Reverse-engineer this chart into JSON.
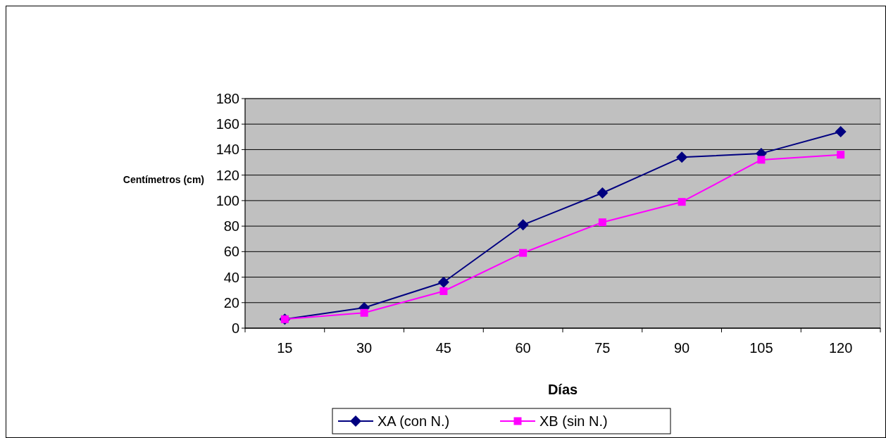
{
  "chart_data": {
    "type": "line",
    "xlabel": "Días",
    "ylabel": "Centímetros (cm)",
    "categories": [
      "15",
      "30",
      "45",
      "60",
      "75",
      "90",
      "105",
      "120"
    ],
    "series": [
      {
        "name": "XA (con N.)",
        "color": "#000080",
        "marker": "diamond",
        "values": [
          7,
          16,
          36,
          81,
          106,
          134,
          137,
          154
        ]
      },
      {
        "name": "XB (sin N.)",
        "color": "#ff00ff",
        "marker": "square",
        "values": [
          7,
          12,
          29,
          59,
          83,
          99,
          132,
          136
        ]
      }
    ],
    "ylim": [
      0,
      180
    ],
    "yticks": [
      0,
      20,
      40,
      60,
      80,
      100,
      120,
      140,
      160,
      180
    ],
    "grid": "y",
    "legend": "bottom",
    "line_style": "solid"
  }
}
